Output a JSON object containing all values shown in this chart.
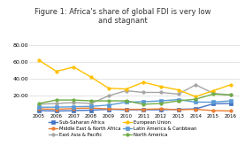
{
  "title": "Figure 1: Africa's share of global FDI is very low\nand stagnant",
  "years": [
    2005,
    2006,
    2007,
    2008,
    2009,
    2010,
    2011,
    2012,
    2013,
    2014,
    2015,
    2016
  ],
  "series": [
    {
      "name": "Sub-Saharan Africa",
      "values": [
        2.5,
        2.0,
        2.5,
        3.0,
        4.0,
        3.5,
        3.5,
        3.5,
        4.0,
        4.5,
        10.5,
        11.0
      ],
      "color": "#4472C4",
      "marker": "s"
    },
    {
      "name": "Middle East & North Africa",
      "values": [
        4.5,
        4.0,
        5.0,
        5.5,
        4.5,
        4.0,
        4.0,
        4.5,
        3.5,
        4.0,
        2.5,
        2.0
      ],
      "color": "#ED7D31",
      "marker": "o"
    },
    {
      "name": "East Asia & Pacific",
      "values": [
        10.0,
        11.0,
        12.0,
        11.0,
        20.0,
        26.0,
        24.0,
        24.0,
        22.0,
        33.0,
        23.0,
        21.0
      ],
      "color": "#A5A5A5",
      "marker": "o"
    },
    {
      "name": "European Union",
      "values": [
        62.0,
        49.0,
        54.0,
        42.0,
        29.0,
        28.0,
        36.0,
        31.0,
        27.0,
        19.0,
        26.0,
        33.0
      ],
      "color": "#FFC000",
      "marker": "o"
    },
    {
      "name": "Latin America & Caribbean",
      "values": [
        6.5,
        6.5,
        7.0,
        7.5,
        9.0,
        12.5,
        13.0,
        14.0,
        15.5,
        12.5,
        12.5,
        14.0
      ],
      "color": "#5B9BD5",
      "marker": "s"
    },
    {
      "name": "North America",
      "values": [
        11.0,
        15.0,
        15.0,
        14.0,
        14.0,
        14.0,
        10.0,
        11.0,
        14.0,
        16.0,
        22.0,
        21.0
      ],
      "color": "#70AD47",
      "marker": "o"
    }
  ],
  "ylim": [
    0,
    80
  ],
  "yticks": [
    20.0,
    40.0,
    60.0,
    80.0
  ],
  "ytick_labels": [
    "20.00",
    "40.00",
    "60.00",
    "80.00"
  ],
  "background_color": "#FFFFFF",
  "plot_bg_color": "#FFFFFF",
  "grid_color": "#D9D9D9",
  "line_width": 1.0,
  "marker_size": 2.5
}
